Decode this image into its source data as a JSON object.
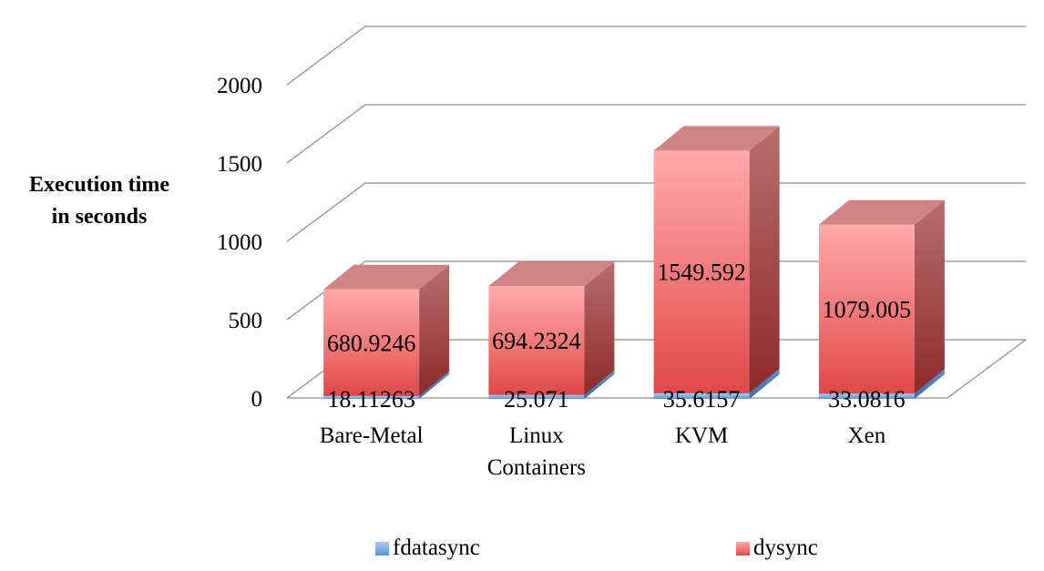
{
  "chart_data": {
    "type": "bar",
    "stacked": true,
    "three_d": true,
    "ylabel": "Execution time in seconds",
    "ylabel_lines": [
      "Execution time",
      "in seconds"
    ],
    "xlabel": "",
    "ylim": [
      0,
      2000
    ],
    "yticks": [
      0,
      500,
      1000,
      1500,
      2000
    ],
    "categories": [
      "Bare-Metal",
      "Linux Containers",
      "KVM",
      "Xen"
    ],
    "category_lines": [
      [
        "Bare-Metal"
      ],
      [
        "Linux",
        "Containers"
      ],
      [
        "KVM"
      ],
      [
        "Xen"
      ]
    ],
    "series": [
      {
        "name": "fdatasync",
        "color": "#5b9bd5",
        "values": [
          18.11263,
          25.071,
          35.6157,
          33.0816
        ],
        "labels": [
          "18.11263",
          "25.071",
          "35.6157",
          "33.0816"
        ]
      },
      {
        "name": "dysync",
        "color": "#e05a5a",
        "values": [
          680.9246,
          694.2324,
          1549.592,
          1079.005
        ],
        "labels": [
          "680.9246",
          "694.2324",
          "1549.592",
          "1079.005"
        ]
      }
    ],
    "grid": true,
    "legend_position": "bottom"
  }
}
